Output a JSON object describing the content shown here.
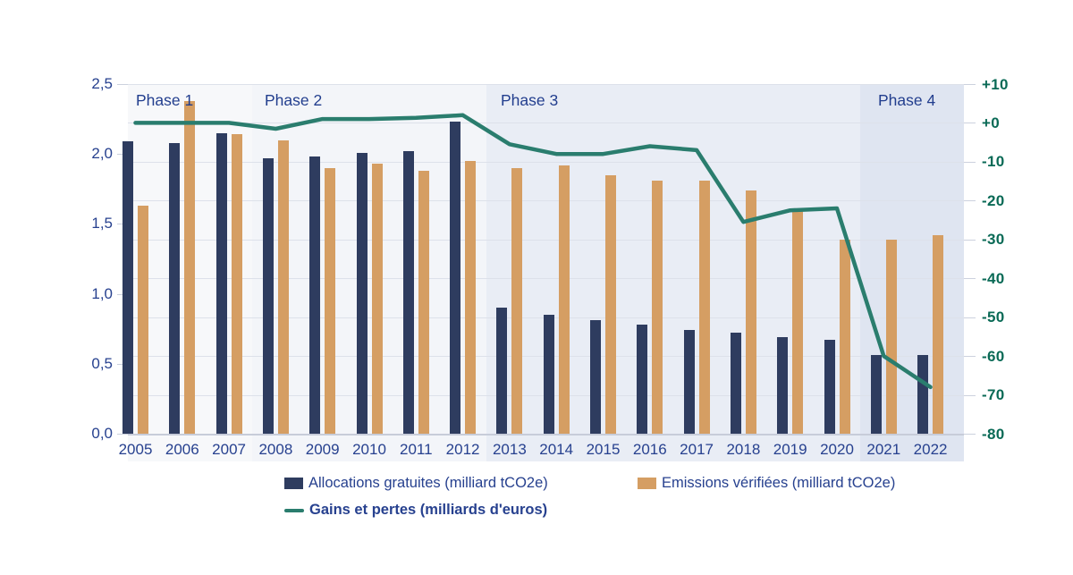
{
  "page": {
    "background": "#ffffff"
  },
  "chart_data": {
    "type": "bar",
    "title": "",
    "xlabel": "",
    "ylabel_left": "milliard tCO2e",
    "ylabel_right": "milliards d'euros",
    "grid": true,
    "legend_position": "bottom",
    "categories": [
      "2005",
      "2006",
      "2007",
      "2008",
      "2009",
      "2010",
      "2011",
      "2012",
      "2013",
      "2014",
      "2015",
      "2016",
      "2017",
      "2018",
      "2019",
      "2020",
      "2021",
      "2022"
    ],
    "series": [
      {
        "name": "Allocations gratuites (milliard tCO2e)",
        "type": "bar",
        "axis": "left",
        "color": "#2e3c5f",
        "values": [
          2.09,
          2.08,
          2.15,
          1.97,
          1.98,
          2.01,
          2.02,
          2.23,
          0.9,
          0.85,
          0.81,
          0.78,
          0.74,
          0.72,
          0.69,
          0.67,
          0.56,
          0.56
        ]
      },
      {
        "name": "Emissions vérifiées (milliard tCO2e)",
        "type": "bar",
        "axis": "left",
        "color": "#d59e63",
        "values": [
          1.63,
          2.38,
          2.14,
          2.1,
          1.9,
          1.93,
          1.88,
          1.95,
          1.9,
          1.92,
          1.85,
          1.81,
          1.81,
          1.74,
          1.61,
          1.39,
          1.39,
          1.42
        ]
      },
      {
        "name": "Gains et pertes (milliards d'euros)",
        "type": "line",
        "axis": "right",
        "color": "#2a7d6e",
        "values": [
          0,
          0,
          0,
          -1.5,
          1,
          1,
          1.3,
          2,
          -5.5,
          -8,
          -8,
          -6,
          -7,
          -25.5,
          -22.5,
          -22,
          -60,
          -68
        ]
      }
    ],
    "left_axis": {
      "min": 0,
      "max": 2.5,
      "color": "#27418f",
      "tick_labels": [
        "2,5",
        "2,0",
        "1,5",
        "1,0",
        "0,5",
        "0,0"
      ],
      "tick_values": [
        2.5,
        2.0,
        1.5,
        1.0,
        0.5,
        0.0
      ]
    },
    "right_axis": {
      "min": -80,
      "max": 10,
      "color": "#0a6a56",
      "tick_labels": [
        "+10",
        "+0",
        "-10",
        "-20",
        "-30",
        "-40",
        "-50",
        "-60",
        "-70",
        "-80"
      ],
      "tick_values": [
        10,
        0,
        -10,
        -20,
        -30,
        -40,
        -50,
        -60,
        -70,
        -80
      ]
    },
    "phases": [
      {
        "label": "Phase 1",
        "start_year": "2005",
        "end_year": "2007",
        "bg": "#f7f8fa"
      },
      {
        "label": "Phase 2",
        "start_year": "2008",
        "end_year": "2012",
        "bg": "#f3f5f9"
      },
      {
        "label": "Phase 3",
        "start_year": "2013",
        "end_year": "2020",
        "bg": "#e9edf5"
      },
      {
        "label": "Phase 4",
        "start_year": "2021",
        "end_year": "2022",
        "bg": "#dfe5f1"
      }
    ]
  }
}
